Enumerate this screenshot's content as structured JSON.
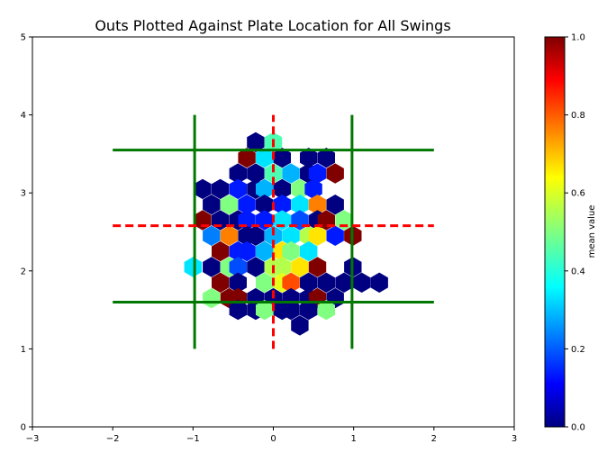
{
  "chart_data": {
    "type": "heatmap",
    "subtype": "hexbin",
    "title": "Outs Plotted Against Plate Location for All Swings",
    "xlabel": "",
    "ylabel": "",
    "xlim": [
      -3,
      3
    ],
    "ylim": [
      0,
      5
    ],
    "xticks": [
      -3,
      -2,
      -1,
      0,
      1,
      2,
      3
    ],
    "yticks": [
      0,
      1,
      2,
      3,
      4,
      5
    ],
    "grid": false,
    "colorbar": {
      "label": "mean value",
      "range": [
        0.0,
        1.0
      ],
      "ticks": [
        "0.0",
        "0.2",
        "0.4",
        "0.6",
        "0.8",
        "1.0"
      ],
      "colormap": "jet"
    },
    "strike_zone": {
      "x_lines": [
        -0.98,
        0.98
      ],
      "y_lines": [
        1.6,
        3.55
      ],
      "x_line_range": [
        1.0,
        4.0
      ],
      "y_line_range": [
        -2.0,
        2.0
      ],
      "color": "#007800"
    },
    "center_lines": {
      "x": 0.0,
      "y": 2.58,
      "x_range": [
        -2.0,
        2.0
      ],
      "y_range": [
        1.0,
        4.0
      ],
      "color": "#ff0000",
      "style": "dashed"
    },
    "hexbins": [
      {
        "x": -0.22,
        "y": 3.65,
        "v": 0.0
      },
      {
        "x": 0.0,
        "y": 3.65,
        "v": 0.45
      },
      {
        "x": -0.33,
        "y": 3.45,
        "v": 1.0
      },
      {
        "x": -0.11,
        "y": 3.45,
        "v": 0.35
      },
      {
        "x": 0.11,
        "y": 3.45,
        "v": 0.0
      },
      {
        "x": 0.44,
        "y": 3.45,
        "v": 0.0
      },
      {
        "x": 0.66,
        "y": 3.45,
        "v": 0.0
      },
      {
        "x": -0.44,
        "y": 3.25,
        "v": 0.0
      },
      {
        "x": -0.22,
        "y": 3.25,
        "v": 0.0
      },
      {
        "x": 0.0,
        "y": 3.25,
        "v": 0.45
      },
      {
        "x": 0.22,
        "y": 3.25,
        "v": 0.3
      },
      {
        "x": 0.44,
        "y": 3.25,
        "v": 0.0
      },
      {
        "x": 0.55,
        "y": 3.25,
        "v": 0.15
      },
      {
        "x": 0.77,
        "y": 3.25,
        "v": 1.0
      },
      {
        "x": -0.88,
        "y": 3.05,
        "v": 0.0
      },
      {
        "x": -0.66,
        "y": 3.05,
        "v": 0.0
      },
      {
        "x": -0.44,
        "y": 3.05,
        "v": 0.15
      },
      {
        "x": -0.22,
        "y": 3.05,
        "v": 0.0
      },
      {
        "x": -0.11,
        "y": 3.05,
        "v": 0.3
      },
      {
        "x": 0.11,
        "y": 3.05,
        "v": 0.0
      },
      {
        "x": 0.33,
        "y": 3.05,
        "v": 0.5
      },
      {
        "x": 0.5,
        "y": 3.05,
        "v": 0.15
      },
      {
        "x": -0.77,
        "y": 2.85,
        "v": 0.0
      },
      {
        "x": -0.55,
        "y": 2.85,
        "v": 0.5
      },
      {
        "x": -0.33,
        "y": 2.85,
        "v": 0.15
      },
      {
        "x": -0.11,
        "y": 2.85,
        "v": 0.0
      },
      {
        "x": 0.11,
        "y": 2.85,
        "v": 0.15
      },
      {
        "x": 0.33,
        "y": 2.85,
        "v": 0.35
      },
      {
        "x": 0.55,
        "y": 2.85,
        "v": 0.75
      },
      {
        "x": 0.77,
        "y": 2.85,
        "v": 0.0
      },
      {
        "x": -0.88,
        "y": 2.65,
        "v": 1.0
      },
      {
        "x": -0.66,
        "y": 2.65,
        "v": 0.0
      },
      {
        "x": -0.44,
        "y": 2.65,
        "v": 0.0
      },
      {
        "x": -0.33,
        "y": 2.65,
        "v": 0.15
      },
      {
        "x": -0.11,
        "y": 2.65,
        "v": 0.15
      },
      {
        "x": 0.11,
        "y": 2.65,
        "v": 0.35
      },
      {
        "x": 0.33,
        "y": 2.65,
        "v": 0.2
      },
      {
        "x": 0.55,
        "y": 2.65,
        "v": 0.0
      },
      {
        "x": 0.66,
        "y": 2.65,
        "v": 1.0
      },
      {
        "x": 0.88,
        "y": 2.65,
        "v": 0.5
      },
      {
        "x": -0.77,
        "y": 2.45,
        "v": 0.25
      },
      {
        "x": -0.55,
        "y": 2.45,
        "v": 0.75
      },
      {
        "x": -0.33,
        "y": 2.45,
        "v": 0.0
      },
      {
        "x": -0.22,
        "y": 2.45,
        "v": 0.0
      },
      {
        "x": 0.0,
        "y": 2.45,
        "v": 0.3
      },
      {
        "x": 0.22,
        "y": 2.45,
        "v": 0.35
      },
      {
        "x": 0.44,
        "y": 2.45,
        "v": 0.55
      },
      {
        "x": 0.55,
        "y": 2.45,
        "v": 0.65
      },
      {
        "x": 0.77,
        "y": 2.45,
        "v": 0.15
      },
      {
        "x": 0.99,
        "y": 2.45,
        "v": 1.0
      },
      {
        "x": -0.66,
        "y": 2.25,
        "v": 1.0
      },
      {
        "x": -0.44,
        "y": 2.25,
        "v": 0.15
      },
      {
        "x": -0.33,
        "y": 2.25,
        "v": 0.15
      },
      {
        "x": -0.11,
        "y": 2.25,
        "v": 0.3
      },
      {
        "x": 0.11,
        "y": 2.25,
        "v": 0.65
      },
      {
        "x": 0.22,
        "y": 2.25,
        "v": 0.5
      },
      {
        "x": 0.44,
        "y": 2.25,
        "v": 0.35
      },
      {
        "x": -1.0,
        "y": 2.05,
        "v": 0.35
      },
      {
        "x": -0.77,
        "y": 2.05,
        "v": 0.0
      },
      {
        "x": -0.55,
        "y": 2.05,
        "v": 0.5
      },
      {
        "x": -0.44,
        "y": 2.05,
        "v": 0.2
      },
      {
        "x": -0.22,
        "y": 2.05,
        "v": 0.0
      },
      {
        "x": 0.0,
        "y": 2.05,
        "v": 0.55
      },
      {
        "x": 0.11,
        "y": 2.05,
        "v": 0.55
      },
      {
        "x": 0.33,
        "y": 2.05,
        "v": 0.65
      },
      {
        "x": 0.55,
        "y": 2.05,
        "v": 1.0
      },
      {
        "x": 0.99,
        "y": 2.05,
        "v": 0.0
      },
      {
        "x": -0.66,
        "y": 1.85,
        "v": 1.0
      },
      {
        "x": -0.44,
        "y": 1.85,
        "v": 0.0
      },
      {
        "x": -0.11,
        "y": 1.85,
        "v": 0.5
      },
      {
        "x": 0.11,
        "y": 1.85,
        "v": 0.6
      },
      {
        "x": 0.22,
        "y": 1.85,
        "v": 0.8
      },
      {
        "x": 0.44,
        "y": 1.85,
        "v": 0.0
      },
      {
        "x": 0.66,
        "y": 1.85,
        "v": 0.0
      },
      {
        "x": 0.88,
        "y": 1.85,
        "v": 0.0
      },
      {
        "x": 1.1,
        "y": 1.85,
        "v": 0.0
      },
      {
        "x": 1.32,
        "y": 1.85,
        "v": 0.0
      },
      {
        "x": -0.77,
        "y": 1.65,
        "v": 0.5
      },
      {
        "x": -0.55,
        "y": 1.65,
        "v": 1.0
      },
      {
        "x": -0.44,
        "y": 1.65,
        "v": 1.0
      },
      {
        "x": -0.22,
        "y": 1.65,
        "v": 0.0
      },
      {
        "x": 0.0,
        "y": 1.65,
        "v": 0.0
      },
      {
        "x": 0.22,
        "y": 1.65,
        "v": 0.0
      },
      {
        "x": 0.44,
        "y": 1.65,
        "v": 0.0
      },
      {
        "x": 0.55,
        "y": 1.65,
        "v": 1.0
      },
      {
        "x": 0.77,
        "y": 1.65,
        "v": 0.0
      },
      {
        "x": -0.44,
        "y": 1.5,
        "v": 0.0
      },
      {
        "x": -0.22,
        "y": 1.5,
        "v": 0.0
      },
      {
        "x": -0.11,
        "y": 1.5,
        "v": 0.5
      },
      {
        "x": 0.11,
        "y": 1.5,
        "v": 0.0
      },
      {
        "x": 0.22,
        "y": 1.5,
        "v": 0.0
      },
      {
        "x": 0.44,
        "y": 1.5,
        "v": 0.0
      },
      {
        "x": 0.66,
        "y": 1.5,
        "v": 0.5
      },
      {
        "x": 0.33,
        "y": 1.3,
        "v": 0.0
      }
    ]
  }
}
